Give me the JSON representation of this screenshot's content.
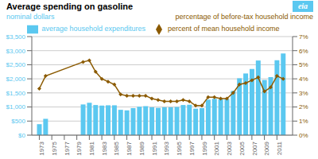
{
  "chart_data": {
    "type": "bar",
    "title": "Average spending on gasoline",
    "y_label": "nominal dollars",
    "y2_label": "percentage of before-tax household income",
    "annotations": [
      "eia"
    ],
    "x": [
      1973,
      1974,
      1975,
      1976,
      1977,
      1978,
      1979,
      1980,
      1981,
      1982,
      1983,
      1984,
      1985,
      1986,
      1987,
      1988,
      1989,
      1990,
      1991,
      1992,
      1993,
      1994,
      1995,
      1996,
      1997,
      1998,
      1999,
      2000,
      2001,
      2002,
      2003,
      2004,
      2005,
      2006,
      2007,
      2008,
      2009,
      2010,
      2011,
      2012
    ],
    "xlim": [
      1971.8,
      2013.5
    ],
    "xticks": [
      1973,
      1975,
      1977,
      1979,
      1981,
      1983,
      1985,
      1987,
      1989,
      1991,
      1993,
      1995,
      1997,
      1999,
      2001,
      2003,
      2005,
      2007,
      2009,
      2011
    ],
    "ylim": [
      0,
      3500
    ],
    "yticks": [
      {
        "value": 0,
        "label": "$0"
      },
      {
        "value": 500,
        "label": "$500"
      },
      {
        "value": 1000,
        "label": "$1,000"
      },
      {
        "value": 1500,
        "label": "$1,500"
      },
      {
        "value": 2000,
        "label": "$2,000"
      },
      {
        "value": 2500,
        "label": "$2,500"
      },
      {
        "value": 3000,
        "label": "$3,000"
      },
      {
        "value": 3500,
        "label": "$3,500"
      }
    ],
    "y2lim": [
      0,
      7
    ],
    "y2ticks": [
      {
        "value": 0,
        "label": "0%"
      },
      {
        "value": 1,
        "label": "1%"
      },
      {
        "value": 2,
        "label": "2%"
      },
      {
        "value": 3,
        "label": "3%"
      },
      {
        "value": 4,
        "label": "4%"
      },
      {
        "value": 5,
        "label": "5%"
      },
      {
        "value": 6,
        "label": "6%"
      },
      {
        "value": 7,
        "label": "7%"
      }
    ],
    "grid": true,
    "legend": "top",
    "series": [
      {
        "name": "average household expenditures",
        "type": "bar",
        "color": "#5bc8f0",
        "values": [
          390,
          580,
          0,
          0,
          0,
          0,
          0,
          1090,
          1150,
          1070,
          1050,
          1060,
          1060,
          900,
          880,
          960,
          1010,
          1030,
          990,
          970,
          990,
          990,
          1000,
          1070,
          1080,
          940,
          960,
          1260,
          1290,
          1270,
          1280,
          1570,
          2020,
          2190,
          2350,
          2650,
          1960,
          2060,
          2660,
          2900
        ]
      },
      {
        "name": "percent of mean household income",
        "type": "line",
        "axis": "y2",
        "color": "#8B5A00",
        "marker": "diamond",
        "x": [
          1973,
          1974,
          1980,
          1981,
          1982,
          1983,
          1984,
          1985,
          1986,
          1987,
          1988,
          1989,
          1990,
          1991,
          1992,
          1993,
          1994,
          1995,
          1996,
          1997,
          1998,
          1999,
          2000,
          2001,
          2002,
          2003,
          2004,
          2005,
          2006,
          2007,
          2008,
          2009,
          2010,
          2011,
          2012
        ],
        "values": [
          3.3,
          4.2,
          5.2,
          5.3,
          4.5,
          4.0,
          3.8,
          3.6,
          2.9,
          2.8,
          2.8,
          2.8,
          2.8,
          2.6,
          2.5,
          2.4,
          2.4,
          2.4,
          2.5,
          2.4,
          2.1,
          2.1,
          2.7,
          2.7,
          2.6,
          2.6,
          3.0,
          3.6,
          3.7,
          3.9,
          4.1,
          3.1,
          3.4,
          4.2,
          4.0
        ]
      }
    ]
  }
}
